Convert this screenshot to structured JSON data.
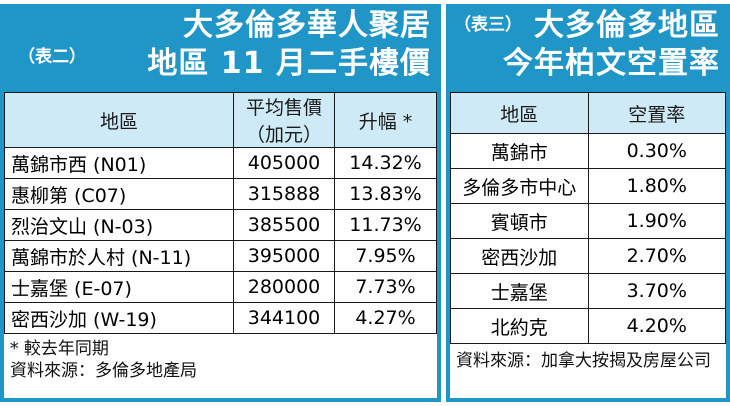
{
  "left": {
    "tag": "（表二）",
    "title_line1": "大多倫多華人聚居",
    "title_line2": "地區 11 月二手樓價",
    "header": {
      "area": "地區",
      "price": "平均售價",
      "price_unit": "（加元）",
      "change": "升幅 *"
    },
    "rows": [
      {
        "area": "萬錦市西 (N01)",
        "price": "405000",
        "change": "14.32%"
      },
      {
        "area": "惠柳第 (C07)",
        "price": "315888",
        "change": "13.83%"
      },
      {
        "area": "烈治文山 (N-03)",
        "price": "385500",
        "change": "11.73%"
      },
      {
        "area": "萬錦市於人村 (N-11)",
        "price": "395000",
        "change": "7.95%"
      },
      {
        "area": "士嘉堡 (E-07)",
        "price": "280000",
        "change": "7.73%"
      },
      {
        "area": "密西沙加 (W-19)",
        "price": "344100",
        "change": "4.27%"
      }
    ],
    "note1": "* 較去年同期",
    "note2": "資料來源：多倫多地產局"
  },
  "right": {
    "tag": "（表三）",
    "title_line1": "大多倫多地區",
    "title_line2": "今年柏文空置率",
    "header": {
      "area": "地區",
      "rate": "空置率"
    },
    "rows": [
      {
        "area": "萬錦市",
        "rate": "0.30%"
      },
      {
        "area": "多倫多市中心",
        "rate": "1.80%"
      },
      {
        "area": "賓頓市",
        "rate": "1.90%"
      },
      {
        "area": "密西沙加",
        "rate": "2.70%"
      },
      {
        "area": "士嘉堡",
        "rate": "3.70%"
      },
      {
        "area": "北約克",
        "rate": "4.20%"
      }
    ],
    "note": "資料來源：加拿大按揭及房屋公司"
  }
}
